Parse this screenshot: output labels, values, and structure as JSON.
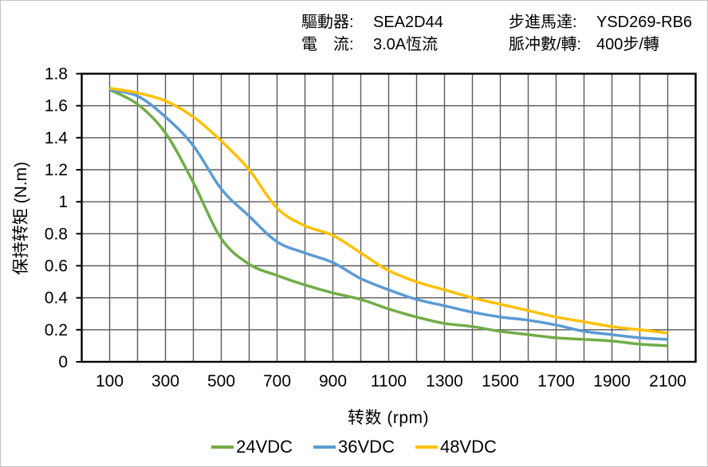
{
  "header": {
    "left": [
      {
        "label": "驅動器:",
        "value": "SEA2D44"
      },
      {
        "label": "電　流:",
        "value": "3.0A恆流"
      }
    ],
    "right": [
      {
        "label": "步進馬達:",
        "value": "YSD269-RB6"
      },
      {
        "label": "脈冲數/轉:",
        "value": "400步/轉"
      }
    ]
  },
  "chart_data": {
    "type": "line",
    "title": "",
    "xlabel": "转数 (rpm)",
    "ylabel": "保持转矩 (N.m)",
    "x": [
      100,
      200,
      300,
      400,
      500,
      600,
      700,
      800,
      900,
      1000,
      1100,
      1200,
      1300,
      1400,
      1500,
      1600,
      1700,
      1800,
      1900,
      2000,
      2100
    ],
    "series": [
      {
        "name": "24VDC",
        "color": "#70AD47",
        "values": [
          1.7,
          1.61,
          1.43,
          1.12,
          0.77,
          0.61,
          0.54,
          0.48,
          0.43,
          0.39,
          0.33,
          0.28,
          0.24,
          0.22,
          0.19,
          0.17,
          0.15,
          0.14,
          0.13,
          0.11,
          0.1
        ]
      },
      {
        "name": "36VDC",
        "color": "#5B9BD5",
        "values": [
          1.7,
          1.66,
          1.53,
          1.35,
          1.08,
          0.91,
          0.75,
          0.68,
          0.62,
          0.52,
          0.45,
          0.39,
          0.35,
          0.31,
          0.28,
          0.26,
          0.23,
          0.19,
          0.17,
          0.15,
          0.14
        ]
      },
      {
        "name": "48VDC",
        "color": "#FFC000",
        "values": [
          1.71,
          1.68,
          1.63,
          1.53,
          1.38,
          1.2,
          0.96,
          0.85,
          0.79,
          0.68,
          0.57,
          0.5,
          0.45,
          0.4,
          0.36,
          0.32,
          0.28,
          0.25,
          0.22,
          0.2,
          0.18
        ]
      }
    ],
    "xlim": [
      0,
      2200
    ],
    "ylim": [
      0,
      1.8
    ],
    "x_grid_step": 100,
    "y_grid_step": 0.2,
    "grid": true,
    "legend_position": "bottom",
    "x_tick_values": [
      100,
      300,
      500,
      700,
      900,
      1100,
      1300,
      1500,
      1700,
      1900,
      2100
    ],
    "x_tick_labels": [
      "100",
      "300",
      "500",
      "700",
      "900",
      "1100",
      "1300",
      "1500",
      "1700",
      "1900",
      "2100"
    ],
    "y_tick_values": [
      0,
      0.2,
      0.4,
      0.6,
      0.8,
      1.0,
      1.2,
      1.4,
      1.6,
      1.8
    ],
    "y_tick_labels": [
      "0",
      "0.2",
      "0.4",
      "0.6",
      "0.8",
      "1",
      "1.2",
      "1.4",
      "1.6",
      "1.8"
    ],
    "axis_color": "#000000",
    "grid_color": "#5a5a5a",
    "text_color": "#000000"
  }
}
